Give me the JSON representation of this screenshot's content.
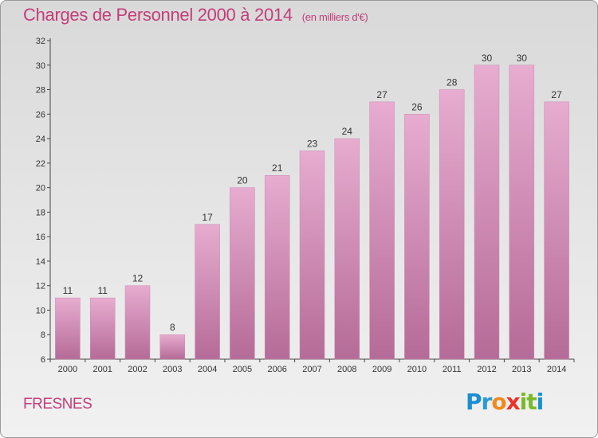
{
  "header": {
    "title": "Charges de Personnel 2000 à 2014",
    "subtitle": "(en milliers d'€)"
  },
  "footer": {
    "commune": "FRESNES",
    "logo": {
      "letters": [
        "P",
        "r",
        "o",
        "x",
        "i",
        "t",
        "i"
      ],
      "colors": [
        "#1a8fd0",
        "#2a9bd6",
        "#f08a1e",
        "#e8342a",
        "#7ab929",
        "#7ab929",
        "#1a8fd0"
      ]
    }
  },
  "colors": {
    "bar_fill_top": "#e7acd0",
    "bar_fill_bottom": "#b56b97",
    "title": "#c23e7a",
    "axis": "#444444"
  },
  "chart_data": {
    "type": "bar",
    "title": "Charges de Personnel 2000 à 2014",
    "subtitle": "(en milliers d'€)",
    "xlabel": "",
    "ylabel": "",
    "categories": [
      "2000",
      "2001",
      "2002",
      "2003",
      "2004",
      "2005",
      "2006",
      "2007",
      "2008",
      "2009",
      "2010",
      "2011",
      "2012",
      "2013",
      "2014"
    ],
    "values": [
      11,
      11,
      12,
      8,
      17,
      20,
      21,
      23,
      24,
      27,
      26,
      28,
      30,
      30,
      27
    ],
    "ylim": [
      6,
      32
    ],
    "yticks": [
      6,
      8,
      10,
      12,
      14,
      16,
      18,
      20,
      22,
      24,
      26,
      28,
      30,
      32
    ],
    "grid": false,
    "data_labels": true
  }
}
